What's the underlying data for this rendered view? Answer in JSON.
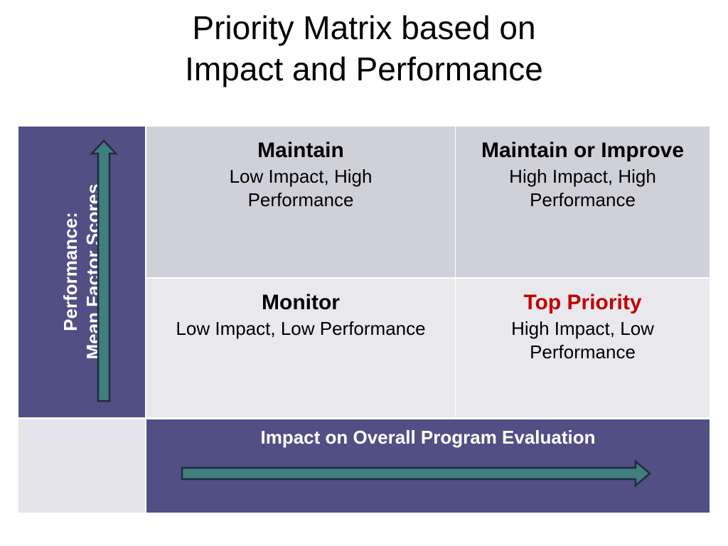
{
  "title": {
    "line1": "Priority Matrix based on",
    "line2": "Impact and Performance"
  },
  "y_axis": {
    "line1": "Performance:",
    "line2": "Mean Factor Scores"
  },
  "x_axis": {
    "label": "Impact on Overall Program Evaluation"
  },
  "quadrants": {
    "top_left": {
      "heading": "Maintain",
      "desc": "Low Impact, High Performance"
    },
    "top_right": {
      "heading": "Maintain or Improve",
      "desc": "High Impact, High Performance"
    },
    "bottom_left": {
      "heading": "Monitor",
      "desc": "Low Impact, Low Performance"
    },
    "bottom_right": {
      "heading": "Top Priority",
      "desc": "High Impact, Low Performance"
    }
  },
  "colors": {
    "axis_fill": "#514f84",
    "arrow_fill": "#3f7f7d",
    "quadrant_top": "#d0d0da",
    "quadrant_bottom": "#e8e8ed",
    "highlight": "#c00000"
  }
}
